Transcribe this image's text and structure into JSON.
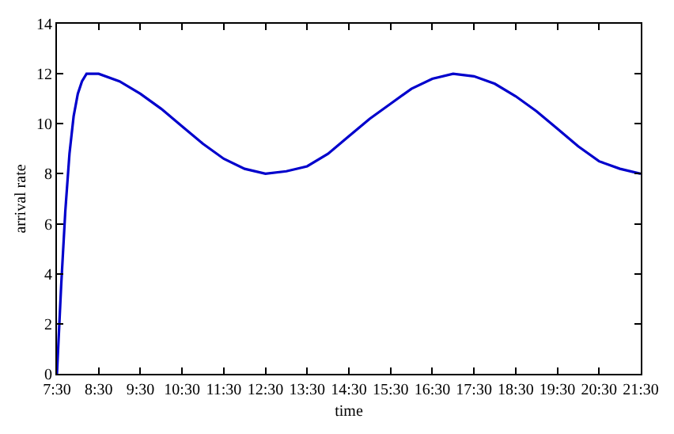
{
  "chart_data": {
    "type": "line",
    "xlabel": "time",
    "ylabel": "arrival rate",
    "x": [
      7.5,
      7.6,
      7.7,
      7.8,
      7.9,
      8.0,
      8.1,
      8.21,
      8.5,
      9.0,
      9.5,
      10.0,
      10.5,
      11.0,
      11.5,
      12.0,
      12.5,
      13.0,
      13.5,
      14.0,
      14.5,
      15.0,
      15.5,
      16.0,
      16.5,
      17.0,
      17.5,
      18.0,
      18.5,
      19.0,
      19.5,
      20.0,
      20.5,
      21.0,
      21.5
    ],
    "series": [
      {
        "color": "#0000cc",
        "values": [
          0,
          3.5,
          6.5,
          8.8,
          10.3,
          11.2,
          11.7,
          12.0,
          12.0,
          11.7,
          11.2,
          10.6,
          9.9,
          9.2,
          8.6,
          8.2,
          8.0,
          8.1,
          8.3,
          8.8,
          9.5,
          10.2,
          10.8,
          11.4,
          11.8,
          12.0,
          11.9,
          11.6,
          11.1,
          10.5,
          9.8,
          9.1,
          8.5,
          8.2,
          8.0
        ]
      }
    ],
    "xlim": [
      7.5,
      21.5
    ],
    "ylim": [
      0,
      14
    ],
    "xticks": [
      {
        "value": 7.5,
        "label": "7:30"
      },
      {
        "value": 8.5,
        "label": "8:30"
      },
      {
        "value": 9.5,
        "label": "9:30"
      },
      {
        "value": 10.5,
        "label": "10:30"
      },
      {
        "value": 11.5,
        "label": "11:30"
      },
      {
        "value": 12.5,
        "label": "12:30"
      },
      {
        "value": 13.5,
        "label": "13:30"
      },
      {
        "value": 14.5,
        "label": "14:30"
      },
      {
        "value": 15.5,
        "label": "15:30"
      },
      {
        "value": 16.5,
        "label": "16:30"
      },
      {
        "value": 17.5,
        "label": "17:30"
      },
      {
        "value": 18.5,
        "label": "18:30"
      },
      {
        "value": 19.5,
        "label": "19:30"
      },
      {
        "value": 20.5,
        "label": "20:30"
      },
      {
        "value": 21.5,
        "label": "21:30"
      }
    ],
    "yticks": [
      0,
      2,
      4,
      6,
      8,
      10,
      12,
      14
    ],
    "marker": "none",
    "line_style": "solid"
  }
}
